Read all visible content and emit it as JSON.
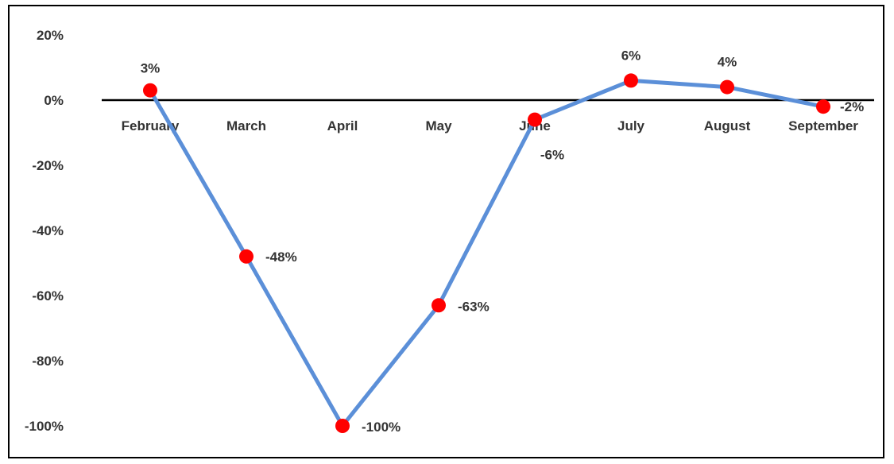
{
  "chart_data": {
    "type": "line",
    "title": "",
    "xlabel": "",
    "ylabel": "",
    "categories": [
      "February",
      "March",
      "April",
      "May",
      "June",
      "July",
      "August",
      "September"
    ],
    "series": [
      {
        "values": [
          0.03,
          -0.48,
          -1.0,
          -0.63,
          -0.06,
          0.06,
          0.04,
          -0.02
        ],
        "labels": [
          "3%",
          "-48%",
          "-100%",
          "-63%",
          "-6%",
          "6%",
          "4%",
          "-2%"
        ]
      }
    ],
    "ylim": [
      -1.0,
      0.2
    ],
    "yticks": [
      {
        "value": 0.2,
        "label": "20%"
      },
      {
        "value": 0.0,
        "label": "0%"
      },
      {
        "value": -0.2,
        "label": "-20%"
      },
      {
        "value": -0.4,
        "label": "-40%"
      },
      {
        "value": -0.6,
        "label": "-60%"
      },
      {
        "value": -0.8,
        "label": "-80%"
      },
      {
        "value": -1.0,
        "label": "-100%"
      }
    ],
    "grid": false,
    "legend": "none",
    "colors": {
      "line": "#5B8FD8",
      "marker": "#FF0000",
      "axis": "#000000",
      "text": "#333333"
    }
  }
}
